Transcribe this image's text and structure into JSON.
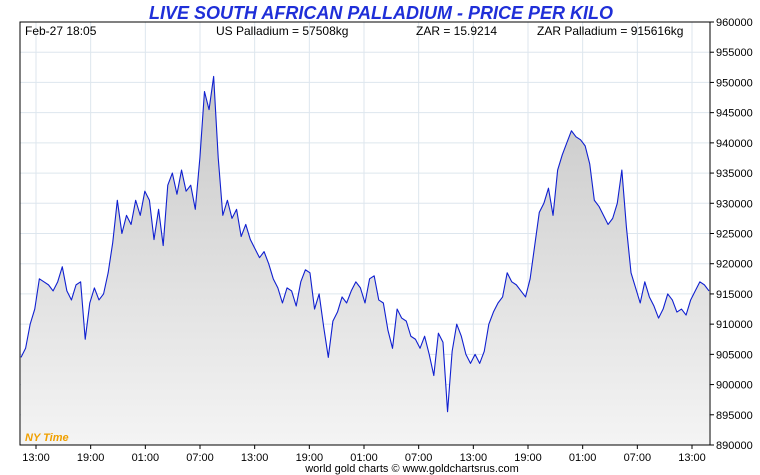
{
  "chart_data": {
    "type": "area",
    "title": "LIVE SOUTH AFRICAN PALLADIUM - PRICE PER KILO",
    "header": {
      "datetime": "Feb-27  18:05",
      "us_price": "US Palladium = 57508kg",
      "zar_rate": "ZAR = 15.9214",
      "zar_price": "ZAR Palladium = 915616kg"
    },
    "timezone_label": "NY Time",
    "footer": "world gold charts © www.goldchartsrus.com",
    "x_tick_labels": [
      "13:00",
      "19:00",
      "01:00",
      "07:00",
      "13:00",
      "19:00",
      "01:00",
      "07:00",
      "13:00",
      "19:00",
      "01:00",
      "07:00",
      "13:00"
    ],
    "y_ticks": [
      890000,
      895000,
      900000,
      905000,
      910000,
      915000,
      920000,
      925000,
      930000,
      935000,
      940000,
      945000,
      950000,
      955000,
      960000
    ],
    "ylim": [
      890000,
      960000
    ],
    "grid": true,
    "series_color": "#1020d0",
    "fill_color": "#d8d8d8",
    "series": [
      {
        "values": [
          904500,
          906000,
          910000,
          912500,
          917500,
          917000,
          916500,
          915500,
          917000,
          919500,
          915500,
          914000,
          916500,
          917000,
          907500,
          913500,
          916000,
          914000,
          915000,
          918500,
          923500,
          930500,
          925000,
          928000,
          926500,
          930500,
          928000,
          932000,
          930500,
          924000,
          929000,
          923000,
          933000,
          935000,
          931500,
          935500,
          932000,
          933000,
          929000,
          937500,
          948500,
          945500,
          951000,
          937500,
          928000,
          930500,
          927500,
          929000,
          924500,
          926500,
          924000,
          922500,
          921000,
          922000,
          920000,
          917500,
          916000,
          913500,
          916000,
          915500,
          913000,
          917000,
          919000,
          918500,
          912500,
          915000,
          909500,
          904500,
          910500,
          912000,
          914500,
          913500,
          915500,
          917000,
          916000,
          913500,
          917500,
          918000,
          914000,
          913500,
          909000,
          906000,
          912500,
          911000,
          910500,
          908000,
          907500,
          906000,
          908000,
          905000,
          901500,
          908500,
          907000,
          895500,
          905500,
          910000,
          908000,
          905000,
          903500,
          905000,
          903500,
          905500,
          910000,
          912000,
          913500,
          914500,
          918500,
          917000,
          916500,
          915500,
          914500,
          917500,
          923000,
          928500,
          930000,
          932500,
          928000,
          935500,
          938000,
          940000,
          942000,
          941000,
          940500,
          939500,
          936500,
          930500,
          929500,
          928000,
          926500,
          927500,
          930000,
          935500,
          926000,
          918500,
          916000,
          913500,
          917000,
          914500,
          913000,
          911000,
          912500,
          915000,
          914000,
          912000,
          912500,
          911500,
          914000,
          915500,
          917000,
          916500,
          915500
        ]
      }
    ]
  }
}
